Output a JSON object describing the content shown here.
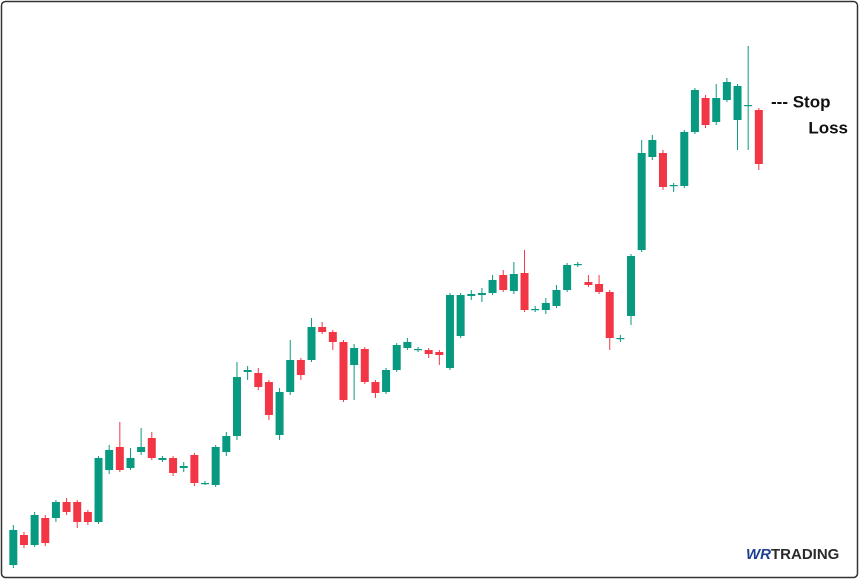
{
  "chart_data": {
    "type": "candlestick",
    "annotation": [
      "--- Stop",
      "Loss"
    ],
    "brand": [
      "WR",
      "TRADING"
    ],
    "up_color": "#089981",
    "down_color": "#f23645",
    "ylim": [
      0,
      580
    ],
    "open": [
      15,
      45,
      35,
      62,
      62,
      78,
      78,
      68,
      58,
      110,
      133,
      112,
      128,
      142,
      120,
      122,
      112,
      125,
      97,
      95,
      128,
      144,
      208,
      207,
      198,
      145,
      188,
      220,
      220,
      253,
      248,
      238,
      215,
      231,
      198,
      188,
      210,
      232,
      230,
      230,
      228,
      212,
      244,
      284,
      285,
      287,
      305,
      289,
      307,
      270,
      270,
      274,
      290,
      315,
      298,
      296,
      288,
      241,
      264,
      330,
      423,
      427,
      394,
      394,
      448,
      482,
      458,
      480,
      460,
      474,
      470
    ],
    "high": [
      55,
      48,
      68,
      65,
      80,
      82,
      80,
      70,
      124,
      135,
      158,
      132,
      152,
      148,
      124,
      124,
      118,
      127,
      99,
      135,
      148,
      218,
      214,
      212,
      200,
      192,
      240,
      222,
      262,
      258,
      250,
      240,
      236,
      233,
      200,
      212,
      237,
      242,
      233,
      232,
      230,
      287,
      287,
      290,
      292,
      305,
      310,
      318,
      330,
      274,
      282,
      295,
      317,
      318,
      305,
      305,
      290,
      245,
      326,
      440,
      445,
      430,
      397,
      450,
      492,
      485,
      496,
      502,
      496,
      534,
      472
    ],
    "low": [
      12,
      32,
      33,
      34,
      58,
      65,
      52,
      55,
      56,
      106,
      108,
      110,
      125,
      120,
      118,
      104,
      108,
      94,
      95,
      93,
      124,
      140,
      200,
      190,
      160,
      140,
      185,
      200,
      218,
      246,
      230,
      178,
      180,
      196,
      182,
      186,
      208,
      230,
      228,
      222,
      215,
      210,
      242,
      280,
      278,
      285,
      288,
      286,
      268,
      268,
      266,
      272,
      288,
      313,
      293,
      286,
      230,
      238,
      255,
      328,
      420,
      390,
      388,
      392,
      446,
      452,
      455,
      478,
      430,
      430,
      410
    ],
    "close": [
      50,
      35,
      65,
      37,
      78,
      68,
      58,
      58,
      122,
      130,
      110,
      122,
      133,
      122,
      122,
      107,
      114,
      97,
      97,
      133,
      144,
      203,
      210,
      193,
      165,
      188,
      220,
      205,
      253,
      248,
      238,
      180,
      232,
      198,
      187,
      210,
      235,
      238,
      231,
      226,
      225,
      285,
      285,
      286,
      287,
      300,
      290,
      306,
      270,
      271,
      277,
      290,
      315,
      316,
      295,
      288,
      242,
      242,
      324,
      427,
      440,
      393,
      395,
      448,
      490,
      455,
      482,
      498,
      494,
      475,
      416
    ]
  }
}
